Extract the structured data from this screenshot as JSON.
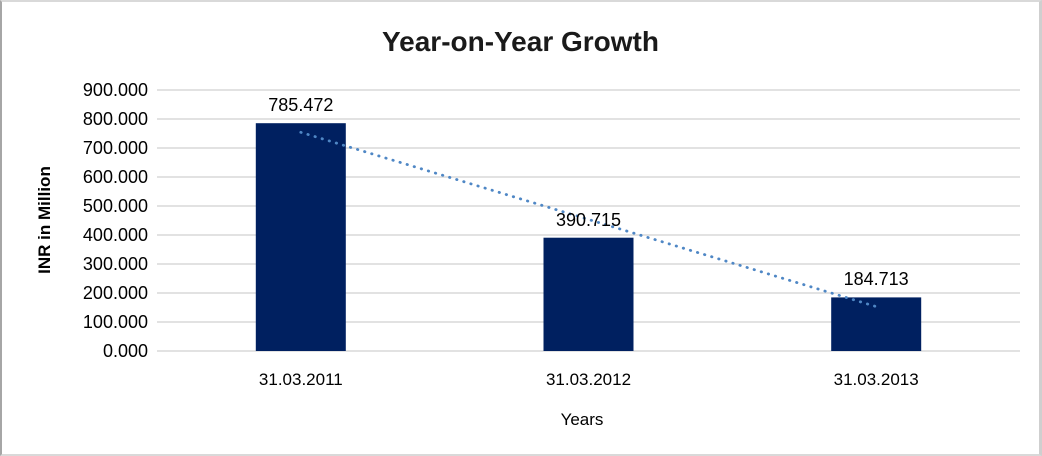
{
  "chart_data": {
    "type": "bar",
    "title": "Year-on-Year Growth",
    "xlabel": "Years",
    "ylabel": "INR in Million",
    "categories": [
      "31.03.2011",
      "31.03.2012",
      "31.03.2013"
    ],
    "values": [
      785.472,
      390.715,
      184.713
    ],
    "value_labels": [
      "785.472",
      "390.715",
      "184.713"
    ],
    "y_tick_labels": [
      "900.000",
      "800.000",
      "700.000",
      "600.000",
      "500.000",
      "400.000",
      "300.000",
      "200.000",
      "100.000",
      "0.000"
    ],
    "y_tick_values": [
      900,
      800,
      700,
      600,
      500,
      400,
      300,
      200,
      100,
      0
    ],
    "ylim": [
      0,
      900
    ],
    "grid": true,
    "legend": "none",
    "trendline": {
      "type": "linear",
      "style": "dotted"
    },
    "colors": {
      "bar": "#002060",
      "trendline": "#4f87c5",
      "gridline": "#d9d9d9",
      "text": "#000000",
      "title": "#1a1a1a"
    }
  }
}
